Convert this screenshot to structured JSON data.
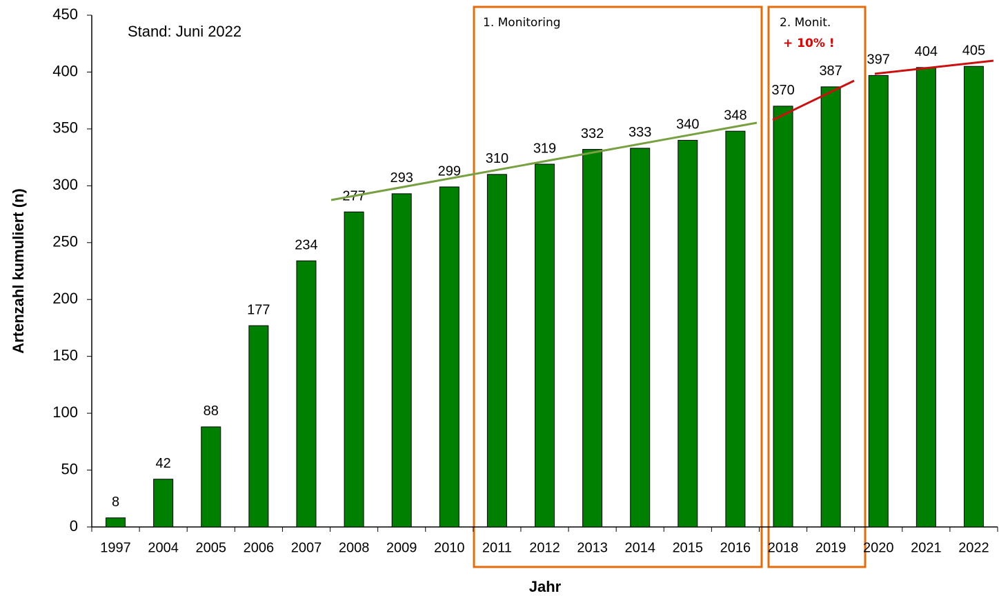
{
  "chart_data": {
    "type": "bar",
    "y_label": "Artenzahl kumuliert (n)",
    "x_label": "Jahr",
    "annotations": [
      "Stand: Juni 2022",
      "1. Monitoring",
      "2. Monit.",
      "+ 10% !"
    ],
    "categories": [
      "1997",
      "2004",
      "2005",
      "2006",
      "2007",
      "2008",
      "2009",
      "2010",
      "2011",
      "2012",
      "2013",
      "2014",
      "2015",
      "2016",
      "2018",
      "2019",
      "2020",
      "2021",
      "2022"
    ],
    "values": [
      8,
      42,
      88,
      177,
      234,
      277,
      293,
      299,
      310,
      319,
      332,
      333,
      340,
      348,
      370,
      387,
      397,
      404,
      405
    ],
    "color": "#008000",
    "ylim": [
      0,
      450
    ],
    "yticks": [
      0,
      50,
      100,
      150,
      200,
      250,
      300,
      350,
      400,
      450
    ],
    "grid": false
  }
}
